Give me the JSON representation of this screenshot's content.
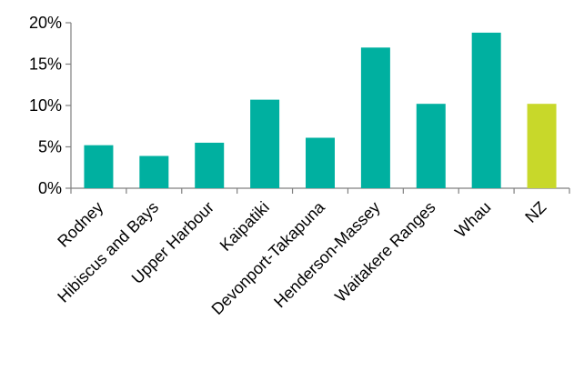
{
  "chart_data": {
    "type": "bar",
    "categories": [
      "Rodney",
      "Hibiscus and Bays",
      "Upper Harbour",
      "Kaipatiki",
      "Devonport-Takapuna",
      "Henderson-Massey",
      "Waitakere Ranges",
      "Whau",
      "NZ"
    ],
    "values": [
      5.2,
      3.9,
      5.5,
      10.7,
      6.1,
      17.0,
      10.2,
      18.8,
      10.2
    ],
    "ylim": [
      0,
      20
    ],
    "yticks": [
      0,
      5,
      10,
      15,
      20
    ],
    "ytick_labels": [
      "0%",
      "5%",
      "10%",
      "15%",
      "20%"
    ],
    "bar_colors": [
      "#00B0A0",
      "#00B0A0",
      "#00B0A0",
      "#00B0A0",
      "#00B0A0",
      "#00B0A0",
      "#00B0A0",
      "#00B0A0",
      "#C8D82A"
    ],
    "grid": false,
    "title": "",
    "xlabel": "",
    "ylabel": ""
  },
  "colors": {
    "bar": "#00B0A0",
    "highlight_bar": "#C8D82A",
    "axis": "#808080",
    "text": "#000000"
  }
}
